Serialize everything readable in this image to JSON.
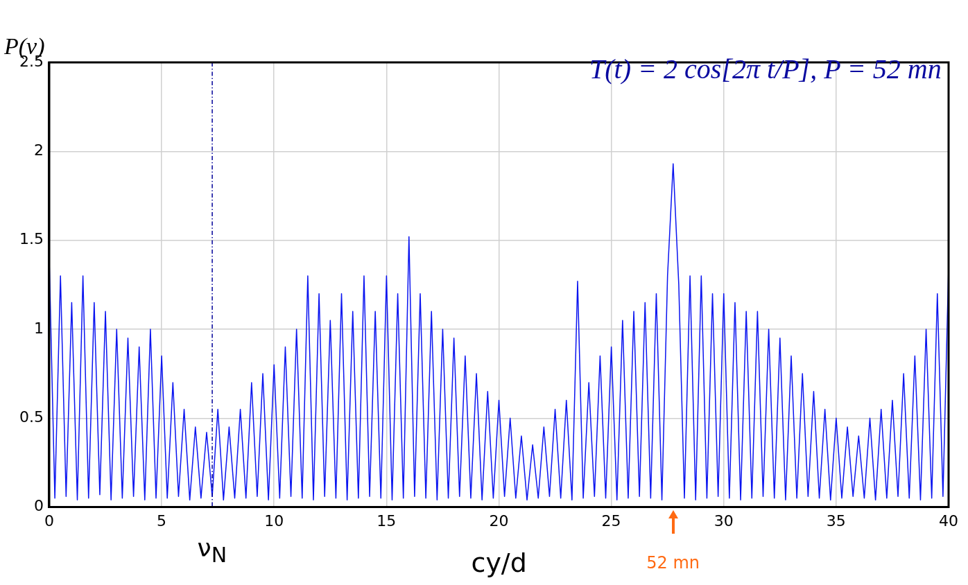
{
  "chart_data": {
    "type": "line",
    "xlabel": "cy/d",
    "ylabel": "P(ν)",
    "x": [
      0,
      0.25,
      0.5,
      0.75,
      1,
      1.25,
      1.5,
      1.75,
      2,
      2.25,
      2.5,
      2.75,
      3,
      3.25,
      3.5,
      3.75,
      4,
      4.25,
      4.5,
      4.75,
      5,
      5.25,
      5.5,
      5.75,
      6,
      6.25,
      6.5,
      6.75,
      7,
      7.25,
      7.5,
      7.75,
      8,
      8.25,
      8.5,
      8.75,
      9,
      9.25,
      9.5,
      9.75,
      10,
      10.25,
      10.5,
      10.75,
      11,
      11.25,
      11.5,
      11.75,
      12,
      12.25,
      12.5,
      12.75,
      13,
      13.25,
      13.5,
      13.75,
      14,
      14.25,
      14.5,
      14.75,
      15,
      15.25,
      15.5,
      15.75,
      16,
      16.25,
      16.5,
      16.75,
      17,
      17.25,
      17.5,
      17.75,
      18,
      18.25,
      18.5,
      18.75,
      19,
      19.25,
      19.5,
      19.75,
      20,
      20.25,
      20.5,
      20.75,
      21,
      21.25,
      21.5,
      21.75,
      22,
      22.25,
      22.5,
      22.75,
      23,
      23.25,
      23.5,
      23.75,
      24,
      24.25,
      24.5,
      24.75,
      25,
      25.25,
      25.5,
      25.75,
      26,
      26.25,
      26.5,
      26.75,
      27,
      27.25,
      27.5,
      27.75,
      28,
      28.25,
      28.5,
      28.75,
      29,
      29.25,
      29.5,
      29.75,
      30,
      30.25,
      30.5,
      30.75,
      31,
      31.25,
      31.5,
      31.75,
      32,
      32.25,
      32.5,
      32.75,
      33,
      33.25,
      33.5,
      33.75,
      34,
      34.25,
      34.5,
      34.75,
      35,
      35.25,
      35.5,
      35.75,
      36,
      36.25,
      36.5,
      36.75,
      37,
      37.25,
      37.5,
      37.75,
      38,
      38.25,
      38.5,
      38.75,
      39,
      39.25,
      39.5,
      39.75,
      40
    ],
    "series": [
      {
        "color": "#0a14f0",
        "values": [
          1.4,
          0.05,
          1.3,
          0.06,
          1.15,
          0.04,
          1.3,
          0.05,
          1.15,
          0.07,
          1.1,
          0.04,
          1.0,
          0.05,
          0.95,
          0.06,
          0.9,
          0.04,
          1.0,
          0.05,
          0.85,
          0.05,
          0.7,
          0.06,
          0.55,
          0.04,
          0.45,
          0.05,
          0.42,
          0.06,
          0.55,
          0.04,
          0.45,
          0.05,
          0.55,
          0.05,
          0.7,
          0.06,
          0.75,
          0.04,
          0.8,
          0.05,
          0.9,
          0.06,
          1.0,
          0.05,
          1.3,
          0.04,
          1.2,
          0.06,
          1.05,
          0.05,
          1.2,
          0.04,
          1.1,
          0.05,
          1.3,
          0.06,
          1.1,
          0.05,
          1.3,
          0.04,
          1.2,
          0.05,
          1.52,
          0.06,
          1.2,
          0.05,
          1.1,
          0.04,
          1.0,
          0.05,
          0.95,
          0.06,
          0.85,
          0.05,
          0.75,
          0.04,
          0.65,
          0.05,
          0.6,
          0.06,
          0.5,
          0.05,
          0.4,
          0.04,
          0.35,
          0.05,
          0.45,
          0.06,
          0.55,
          0.05,
          0.6,
          0.04,
          1.27,
          0.05,
          0.7,
          0.06,
          0.85,
          0.05,
          0.9,
          0.04,
          1.05,
          0.05,
          1.1,
          0.06,
          1.15,
          0.05,
          1.2,
          0.04,
          1.3,
          1.93,
          1.25,
          0.05,
          1.3,
          0.04,
          1.3,
          0.05,
          1.2,
          0.06,
          1.2,
          0.05,
          1.15,
          0.04,
          1.1,
          0.05,
          1.1,
          0.06,
          1.0,
          0.05,
          0.95,
          0.04,
          0.85,
          0.05,
          0.75,
          0.06,
          0.65,
          0.05,
          0.55,
          0.04,
          0.5,
          0.05,
          0.45,
          0.06,
          0.4,
          0.05,
          0.5,
          0.04,
          0.55,
          0.05,
          0.6,
          0.06,
          0.75,
          0.05,
          0.85,
          0.04,
          1.0,
          0.05,
          1.2,
          0.06,
          1.35
        ]
      }
    ],
    "xlim": [
      0,
      40
    ],
    "xticks": [
      0,
      5,
      10,
      15,
      20,
      25,
      30,
      35,
      40
    ],
    "ylim": [
      0,
      2.5
    ],
    "yticks": [
      0,
      0.5,
      1,
      1.5,
      2,
      2.5
    ],
    "grid": true,
    "legend": false,
    "marker": "none",
    "line_style": "solid",
    "ref_lines": [
      {
        "axis": "x",
        "value": 7.25,
        "label": "ν$_{N}$",
        "color": "#000099",
        "line_style": "dashdot"
      }
    ],
    "annotations": [
      "T(t) = 2 cos[2π t/P],    P = 52 mn",
      "52 mn"
    ]
  }
}
